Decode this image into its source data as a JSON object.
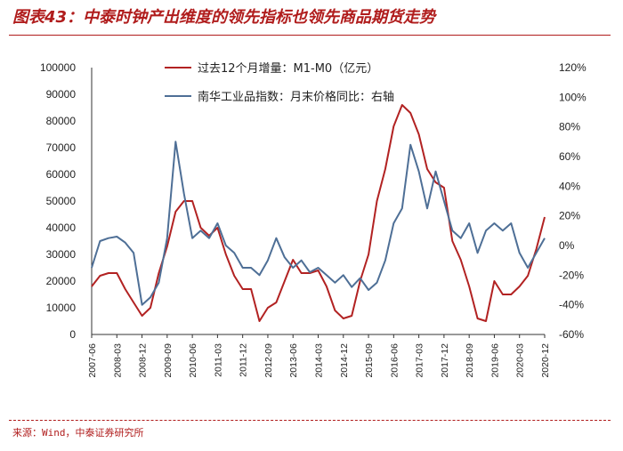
{
  "header": {
    "title": "图表43：中泰时钟产出维度的领先指标也领先商品期货走势"
  },
  "footer": {
    "source": "来源：Wind，中泰证券研究所"
  },
  "colors": {
    "series_red": "#b22222",
    "series_blue": "#4e6f96",
    "title_red": "#b01c1c"
  },
  "chart_data": {
    "type": "line",
    "title": "",
    "y_left": {
      "min": 0,
      "max": 100000,
      "step": 10000,
      "ticks": [
        "0",
        "10000",
        "20000",
        "30000",
        "40000",
        "50000",
        "60000",
        "70000",
        "80000",
        "90000",
        "100000"
      ]
    },
    "y_right": {
      "min": -60,
      "max": 120,
      "step": 20,
      "ticks": [
        "-60%",
        "-40%",
        "-20%",
        "0%",
        "20%",
        "40%",
        "60%",
        "80%",
        "100%",
        "120%"
      ]
    },
    "x_ticks": [
      "2007-06",
      "2008-03",
      "2008-12",
      "2009-09",
      "2010-06",
      "2011-03",
      "2011-12",
      "2012-09",
      "2013-06",
      "2014-03",
      "2014-12",
      "2015-09",
      "2016-06",
      "2017-03",
      "2017-12",
      "2018-09",
      "2019-06",
      "2020-03",
      "2020-12"
    ],
    "x_range": [
      "2007-06",
      "2020-12"
    ],
    "grid": false,
    "legend_position": "top",
    "series": [
      {
        "name": "过去12个月增量：M1-M0（亿元）",
        "axis": "left",
        "color": "#b22222",
        "points": [
          [
            "2007-06",
            18000
          ],
          [
            "2007-09",
            22000
          ],
          [
            "2007-12",
            23000
          ],
          [
            "2008-03",
            23000
          ],
          [
            "2008-06",
            17000
          ],
          [
            "2008-09",
            12000
          ],
          [
            "2008-12",
            7000
          ],
          [
            "2009-03",
            10000
          ],
          [
            "2009-06",
            23000
          ],
          [
            "2009-09",
            33000
          ],
          [
            "2009-12",
            46000
          ],
          [
            "2010-03",
            50000
          ],
          [
            "2010-06",
            50000
          ],
          [
            "2010-09",
            40000
          ],
          [
            "2010-12",
            37000
          ],
          [
            "2011-03",
            40000
          ],
          [
            "2011-06",
            30000
          ],
          [
            "2011-09",
            22000
          ],
          [
            "2011-12",
            17000
          ],
          [
            "2012-03",
            17000
          ],
          [
            "2012-06",
            5000
          ],
          [
            "2012-09",
            10000
          ],
          [
            "2012-12",
            12000
          ],
          [
            "2013-03",
            20000
          ],
          [
            "2013-06",
            28000
          ],
          [
            "2013-09",
            23000
          ],
          [
            "2013-12",
            23000
          ],
          [
            "2014-03",
            24000
          ],
          [
            "2014-06",
            18000
          ],
          [
            "2014-09",
            9000
          ],
          [
            "2014-12",
            6000
          ],
          [
            "2015-03",
            7000
          ],
          [
            "2015-06",
            20000
          ],
          [
            "2015-09",
            30000
          ],
          [
            "2015-12",
            50000
          ],
          [
            "2016-03",
            62000
          ],
          [
            "2016-06",
            78000
          ],
          [
            "2016-09",
            86000
          ],
          [
            "2016-12",
            83000
          ],
          [
            "2017-03",
            75000
          ],
          [
            "2017-06",
            62000
          ],
          [
            "2017-09",
            57000
          ],
          [
            "2017-12",
            55000
          ],
          [
            "2018-03",
            35000
          ],
          [
            "2018-06",
            28000
          ],
          [
            "2018-09",
            18000
          ],
          [
            "2018-12",
            6000
          ],
          [
            "2019-03",
            5000
          ],
          [
            "2019-06",
            20000
          ],
          [
            "2019-09",
            15000
          ],
          [
            "2019-12",
            15000
          ],
          [
            "2020-03",
            18000
          ],
          [
            "2020-06",
            22000
          ],
          [
            "2020-09",
            32000
          ],
          [
            "2020-12",
            44000
          ]
        ]
      },
      {
        "name": "南华工业品指数：月末价格同比：右轴",
        "axis": "right",
        "color": "#4e6f96",
        "points": [
          [
            "2007-06",
            -15
          ],
          [
            "2007-09",
            3
          ],
          [
            "2007-12",
            5
          ],
          [
            "2008-03",
            6
          ],
          [
            "2008-06",
            2
          ],
          [
            "2008-09",
            -5
          ],
          [
            "2008-12",
            -40
          ],
          [
            "2009-03",
            -35
          ],
          [
            "2009-06",
            -25
          ],
          [
            "2009-09",
            5
          ],
          [
            "2009-12",
            70
          ],
          [
            "2010-03",
            35
          ],
          [
            "2010-06",
            5
          ],
          [
            "2010-09",
            10
          ],
          [
            "2010-12",
            5
          ],
          [
            "2011-03",
            15
          ],
          [
            "2011-06",
            0
          ],
          [
            "2011-09",
            -5
          ],
          [
            "2011-12",
            -15
          ],
          [
            "2012-03",
            -15
          ],
          [
            "2012-06",
            -20
          ],
          [
            "2012-09",
            -10
          ],
          [
            "2012-12",
            5
          ],
          [
            "2013-03",
            -8
          ],
          [
            "2013-06",
            -15
          ],
          [
            "2013-09",
            -10
          ],
          [
            "2013-12",
            -18
          ],
          [
            "2014-03",
            -15
          ],
          [
            "2014-06",
            -20
          ],
          [
            "2014-09",
            -25
          ],
          [
            "2014-12",
            -20
          ],
          [
            "2015-03",
            -28
          ],
          [
            "2015-06",
            -22
          ],
          [
            "2015-09",
            -30
          ],
          [
            "2015-12",
            -25
          ],
          [
            "2016-03",
            -10
          ],
          [
            "2016-06",
            15
          ],
          [
            "2016-09",
            25
          ],
          [
            "2016-12",
            68
          ],
          [
            "2017-03",
            50
          ],
          [
            "2017-06",
            25
          ],
          [
            "2017-09",
            50
          ],
          [
            "2017-12",
            30
          ],
          [
            "2018-03",
            10
          ],
          [
            "2018-06",
            5
          ],
          [
            "2018-09",
            15
          ],
          [
            "2018-12",
            -5
          ],
          [
            "2019-03",
            10
          ],
          [
            "2019-06",
            15
          ],
          [
            "2019-09",
            10
          ],
          [
            "2019-12",
            15
          ],
          [
            "2020-03",
            -5
          ],
          [
            "2020-06",
            -15
          ],
          [
            "2020-09",
            -5
          ],
          [
            "2020-12",
            5
          ]
        ]
      }
    ]
  }
}
